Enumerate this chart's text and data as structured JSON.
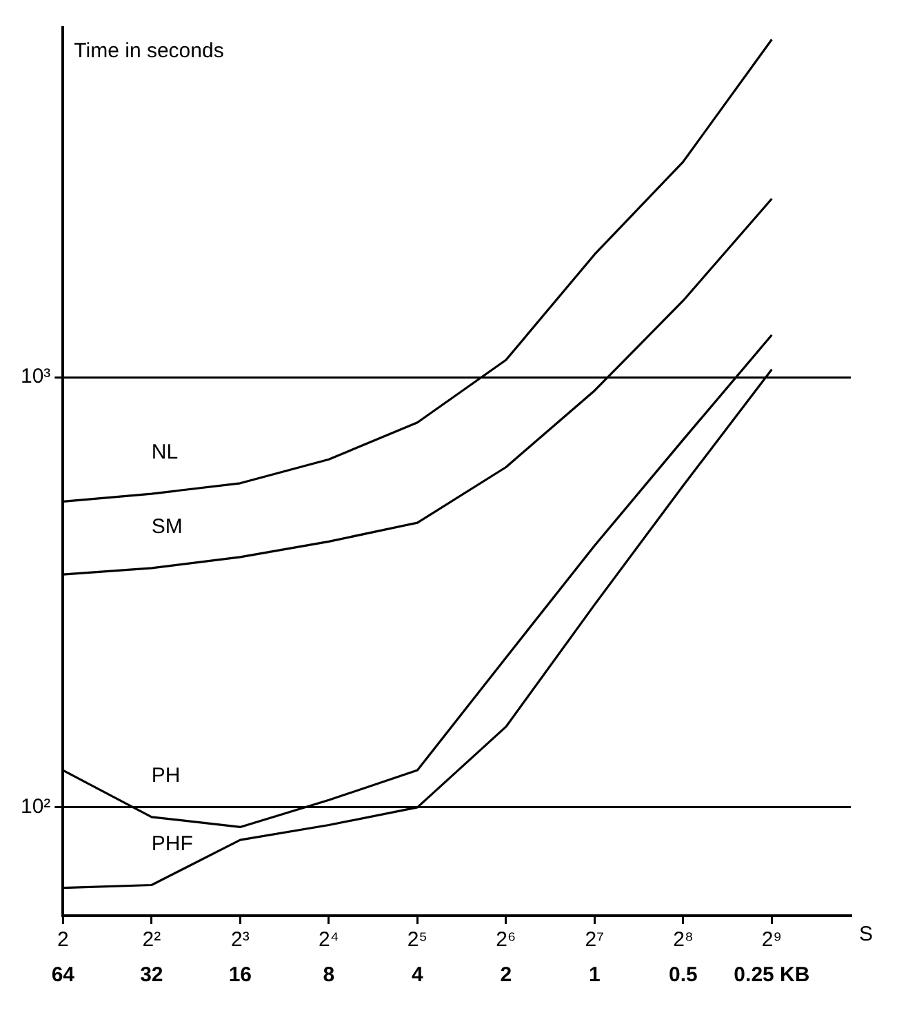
{
  "chart_data": {
    "type": "line",
    "ylabel": "Time in seconds",
    "xlabel": "S",
    "log": "xy",
    "grid": "y",
    "legend": false,
    "marker": "none",
    "line_style": "solid",
    "x": [
      2,
      4,
      8,
      16,
      32,
      64,
      128,
      256,
      512
    ],
    "xlim": [
      2,
      950
    ],
    "ylim": [
      56,
      6500
    ],
    "xticks": [
      2,
      {
        "value": 4,
        "label": "2²"
      },
      {
        "value": 8,
        "label": "2³"
      },
      {
        "value": 16,
        "label": "2⁴"
      },
      {
        "value": 32,
        "label": "2⁵"
      },
      {
        "value": 64,
        "label": "2⁶"
      },
      {
        "value": 128,
        "label": "2⁷"
      },
      {
        "value": 256,
        "label": "2⁸"
      },
      {
        "value": 512,
        "label": "2⁹"
      }
    ],
    "annotations": [
      "64",
      "32",
      "16",
      "8",
      "4",
      "2",
      "1",
      "0.5",
      "0.25 KB"
    ],
    "yticks": [
      {
        "value": 100,
        "label": "10²"
      },
      {
        "value": 1000,
        "label": "10³"
      }
    ],
    "series": [
      {
        "name": "NL",
        "color": "#000000",
        "values": [
          514,
          536,
          567,
          644,
          785,
          1097,
          1930,
          3170,
          6100
        ]
      },
      {
        "name": "SM",
        "color": "#000000",
        "values": [
          348,
          360,
          382,
          415,
          459,
          618,
          931,
          1507,
          2600
        ]
      },
      {
        "name": "PH",
        "color": "#000000",
        "values": [
          122,
          95,
          90,
          104,
          122,
          223,
          406,
          716,
          1254
        ]
      },
      {
        "name": "PHF",
        "color": "#000000",
        "values": [
          65,
          66,
          84,
          91,
          100,
          154,
          296,
          560,
          1043
        ]
      }
    ]
  }
}
